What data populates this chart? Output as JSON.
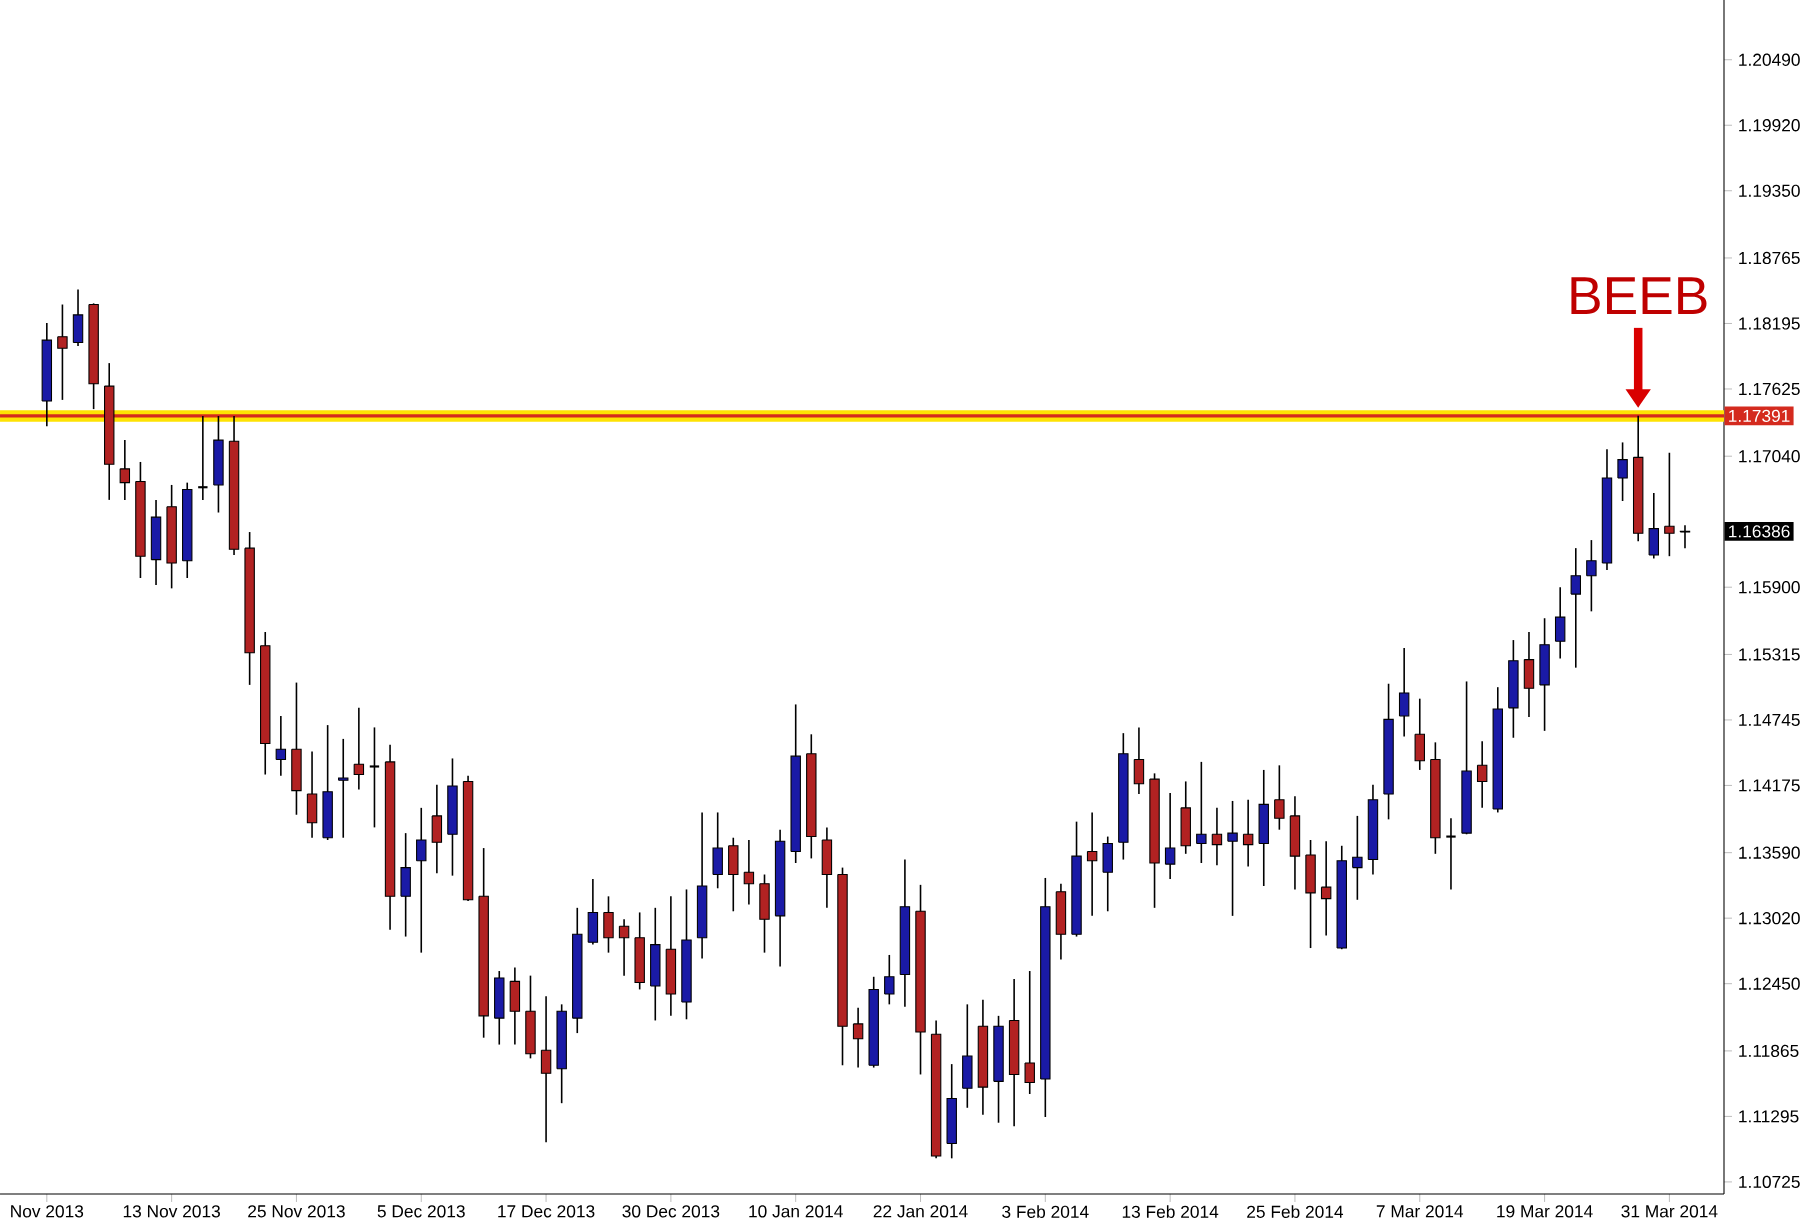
{
  "chart_data": {
    "type": "candlestick",
    "categories": [
      "Nov 2013",
      null,
      null,
      null,
      null,
      null,
      null,
      null,
      "13 Nov 2013",
      null,
      null,
      null,
      null,
      null,
      null,
      null,
      "25 Nov 2013",
      null,
      null,
      null,
      null,
      null,
      null,
      null,
      "5 Dec 2013",
      null,
      null,
      null,
      null,
      null,
      null,
      null,
      "17 Dec 2013",
      null,
      null,
      null,
      null,
      null,
      null,
      null,
      "30 Dec 2013",
      null,
      null,
      null,
      null,
      null,
      null,
      null,
      "10 Jan 2014",
      null,
      null,
      null,
      null,
      null,
      null,
      null,
      "22 Jan 2014",
      null,
      null,
      null,
      null,
      null,
      null,
      null,
      "3 Feb 2014",
      null,
      null,
      null,
      null,
      null,
      null,
      null,
      "13 Feb 2014",
      null,
      null,
      null,
      null,
      null,
      null,
      null,
      "25 Feb 2014",
      null,
      null,
      null,
      null,
      null,
      null,
      null,
      "7 Mar 2014",
      null,
      null,
      null,
      null,
      null,
      null,
      null,
      "19 Mar 2014",
      null,
      null,
      null,
      null,
      null,
      null,
      null,
      "31 Mar 2014",
      null
    ],
    "ohlc": [
      [
        1.1752,
        1.182,
        1.173,
        1.1805
      ],
      [
        1.1808,
        1.1836,
        1.1753,
        1.1798
      ],
      [
        1.1803,
        1.1849,
        1.18,
        1.1827
      ],
      [
        1.1836,
        1.1837,
        1.1745,
        1.1767
      ],
      [
        1.1765,
        1.1785,
        1.1666,
        1.1697
      ],
      [
        1.1693,
        1.1718,
        1.1666,
        1.1681
      ],
      [
        1.1682,
        1.1699,
        1.1598,
        1.1617
      ],
      [
        1.1614,
        1.1666,
        1.1592,
        1.1651
      ],
      [
        1.166,
        1.1679,
        1.1589,
        1.1611
      ],
      [
        1.1613,
        1.1681,
        1.1598,
        1.1675
      ],
      [
        1.1677,
        1.1739,
        1.1666,
        1.1677
      ],
      [
        1.1679,
        1.1739,
        1.1655,
        1.1718
      ],
      [
        1.1717,
        1.1739,
        1.1618,
        1.1623
      ],
      [
        1.1624,
        1.1638,
        1.1505,
        1.1533
      ],
      [
        1.1539,
        1.1551,
        1.1427,
        1.1454
      ],
      [
        1.144,
        1.1478,
        1.1426,
        1.1449
      ],
      [
        1.1449,
        1.1507,
        1.1392,
        1.1413
      ],
      [
        1.141,
        1.1447,
        1.1372,
        1.1385
      ],
      [
        1.1372,
        1.147,
        1.137,
        1.1412
      ],
      [
        1.1422,
        1.1458,
        1.1372,
        1.1424
      ],
      [
        1.1436,
        1.1485,
        1.1414,
        1.1427
      ],
      [
        1.1434,
        1.1468,
        1.1381,
        1.1434
      ],
      [
        1.1438,
        1.1453,
        1.1292,
        1.1321
      ],
      [
        1.1321,
        1.1376,
        1.1286,
        1.1346
      ],
      [
        1.1352,
        1.1398,
        1.1272,
        1.137
      ],
      [
        1.1391,
        1.1418,
        1.1341,
        1.1368
      ],
      [
        1.1375,
        1.1441,
        1.1339,
        1.1417
      ],
      [
        1.1421,
        1.1426,
        1.1317,
        1.1318
      ],
      [
        1.1321,
        1.1363,
        1.1198,
        1.1217
      ],
      [
        1.1215,
        1.1256,
        1.1192,
        1.125
      ],
      [
        1.1247,
        1.1259,
        1.1192,
        1.1221
      ],
      [
        1.1221,
        1.1252,
        1.118,
        1.1184
      ],
      [
        1.1187,
        1.1234,
        1.1107,
        1.1167
      ],
      [
        1.1171,
        1.1227,
        1.1141,
        1.1221
      ],
      [
        1.1215,
        1.1311,
        1.1202,
        1.1288
      ],
      [
        1.1281,
        1.1336,
        1.1279,
        1.1307
      ],
      [
        1.1307,
        1.1321,
        1.1272,
        1.1285
      ],
      [
        1.1295,
        1.1301,
        1.1252,
        1.1285
      ],
      [
        1.1285,
        1.1307,
        1.124,
        1.1246
      ],
      [
        1.1243,
        1.1311,
        1.1213,
        1.1279
      ],
      [
        1.1275,
        1.1321,
        1.1217,
        1.1236
      ],
      [
        1.1229,
        1.1327,
        1.1214,
        1.1283
      ],
      [
        1.1285,
        1.1394,
        1.1267,
        1.133
      ],
      [
        1.134,
        1.1394,
        1.1328,
        1.1363
      ],
      [
        1.1365,
        1.1372,
        1.1308,
        1.134
      ],
      [
        1.1342,
        1.137,
        1.1314,
        1.1332
      ],
      [
        1.1332,
        1.134,
        1.1272,
        1.1301
      ],
      [
        1.1304,
        1.1379,
        1.126,
        1.1369
      ],
      [
        1.136,
        1.1488,
        1.135,
        1.1443
      ],
      [
        1.1445,
        1.1462,
        1.1354,
        1.1373
      ],
      [
        1.137,
        1.1381,
        1.1311,
        1.134
      ],
      [
        1.134,
        1.1346,
        1.1174,
        1.1208
      ],
      [
        1.121,
        1.1224,
        1.1172,
        1.1197
      ],
      [
        1.1174,
        1.1251,
        1.1172,
        1.124
      ],
      [
        1.1236,
        1.127,
        1.1227,
        1.1251
      ],
      [
        1.1253,
        1.1353,
        1.1225,
        1.1312
      ],
      [
        1.1308,
        1.1331,
        1.1166,
        1.1203
      ],
      [
        1.1201,
        1.1213,
        1.1093,
        1.1095
      ],
      [
        1.1106,
        1.1175,
        1.1093,
        1.1145
      ],
      [
        1.1154,
        1.1227,
        1.1137,
        1.1182
      ],
      [
        1.1208,
        1.1231,
        1.1131,
        1.1155
      ],
      [
        1.116,
        1.1217,
        1.1124,
        1.1208
      ],
      [
        1.1213,
        1.1249,
        1.1121,
        1.1166
      ],
      [
        1.1176,
        1.1256,
        1.1149,
        1.1159
      ],
      [
        1.1162,
        1.1337,
        1.1129,
        1.1312
      ],
      [
        1.1325,
        1.1332,
        1.1266,
        1.1288
      ],
      [
        1.1288,
        1.1386,
        1.1286,
        1.1356
      ],
      [
        1.136,
        1.1394,
        1.1304,
        1.1352
      ],
      [
        1.1342,
        1.1373,
        1.1308,
        1.1367
      ],
      [
        1.1368,
        1.1463,
        1.1353,
        1.1445
      ],
      [
        1.144,
        1.1468,
        1.141,
        1.1419
      ],
      [
        1.1423,
        1.1428,
        1.1311,
        1.135
      ],
      [
        1.1349,
        1.1411,
        1.1336,
        1.1363
      ],
      [
        1.1398,
        1.1421,
        1.1358,
        1.1365
      ],
      [
        1.1367,
        1.1438,
        1.135,
        1.1375
      ],
      [
        1.1375,
        1.1398,
        1.1348,
        1.1366
      ],
      [
        1.1369,
        1.1404,
        1.1304,
        1.1376
      ],
      [
        1.1375,
        1.1405,
        1.1347,
        1.1366
      ],
      [
        1.1367,
        1.1431,
        1.133,
        1.1401
      ],
      [
        1.1405,
        1.1435,
        1.1379,
        1.1389
      ],
      [
        1.1391,
        1.1408,
        1.1327,
        1.1356
      ],
      [
        1.1357,
        1.137,
        1.1276,
        1.1324
      ],
      [
        1.1329,
        1.1369,
        1.1287,
        1.1319
      ],
      [
        1.1276,
        1.1365,
        1.1275,
        1.1352
      ],
      [
        1.1346,
        1.1391,
        1.1318,
        1.1355
      ],
      [
        1.1353,
        1.1418,
        1.134,
        1.1405
      ],
      [
        1.141,
        1.1506,
        1.1388,
        1.1475
      ],
      [
        1.1478,
        1.1537,
        1.146,
        1.1498
      ],
      [
        1.1462,
        1.1493,
        1.1431,
        1.1439
      ],
      [
        1.144,
        1.1455,
        1.1358,
        1.1372
      ],
      [
        1.1373,
        1.1389,
        1.1327,
        1.1373
      ],
      [
        1.1376,
        1.1508,
        1.1375,
        1.143
      ],
      [
        1.1435,
        1.1456,
        1.1398,
        1.1421
      ],
      [
        1.1397,
        1.1503,
        1.1394,
        1.1484
      ],
      [
        1.1485,
        1.1544,
        1.1459,
        1.1526
      ],
      [
        1.1527,
        1.1551,
        1.1477,
        1.1502
      ],
      [
        1.1505,
        1.1563,
        1.1465,
        1.154
      ],
      [
        1.1543,
        1.159,
        1.1528,
        1.1564
      ],
      [
        1.1584,
        1.1624,
        1.152,
        1.16
      ],
      [
        1.16,
        1.1631,
        1.1569,
        1.1613
      ],
      [
        1.1611,
        1.171,
        1.1605,
        1.1685
      ],
      [
        1.1685,
        1.1716,
        1.1665,
        1.1701
      ],
      [
        1.1703,
        1.17391,
        1.163,
        1.1637
      ],
      [
        1.1618,
        1.1672,
        1.1615,
        1.1641
      ],
      [
        1.1643,
        1.1707,
        1.1617,
        1.1637
      ],
      [
        1.1638,
        1.1644,
        1.1624,
        1.16386
      ]
    ],
    "colors": [
      "#1a1aa6",
      "#b22222",
      "#1a1aa6",
      "#b22222",
      "#b22222",
      "#b22222",
      "#b22222",
      "#1a1aa6",
      "#b22222",
      "#1a1aa6",
      "#000000",
      "#1a1aa6",
      "#b22222",
      "#b22222",
      "#b22222",
      "#1a1aa6",
      "#b22222",
      "#b22222",
      "#1a1aa6",
      "#1a1aa6",
      "#b22222",
      "#000000",
      "#b22222",
      "#1a1aa6",
      "#1a1aa6",
      "#b22222",
      "#1a1aa6",
      "#b22222",
      "#b22222",
      "#1a1aa6",
      "#b22222",
      "#b22222",
      "#b22222",
      "#1a1aa6",
      "#1a1aa6",
      "#1a1aa6",
      "#b22222",
      "#b22222",
      "#b22222",
      "#1a1aa6",
      "#b22222",
      "#1a1aa6",
      "#1a1aa6",
      "#1a1aa6",
      "#b22222",
      "#b22222",
      "#b22222",
      "#1a1aa6",
      "#1a1aa6",
      "#b22222",
      "#b22222",
      "#b22222",
      "#b22222",
      "#1a1aa6",
      "#1a1aa6",
      "#1a1aa6",
      "#b22222",
      "#b22222",
      "#1a1aa6",
      "#1a1aa6",
      "#b22222",
      "#1a1aa6",
      "#b22222",
      "#b22222",
      "#1a1aa6",
      "#b22222",
      "#1a1aa6",
      "#b22222",
      "#1a1aa6",
      "#1a1aa6",
      "#b22222",
      "#b22222",
      "#1a1aa6",
      "#b22222",
      "#1a1aa6",
      "#b22222",
      "#1a1aa6",
      "#b22222",
      "#1a1aa6",
      "#b22222",
      "#b22222",
      "#b22222",
      "#b22222",
      "#1a1aa6",
      "#1a1aa6",
      "#1a1aa6",
      "#1a1aa6",
      "#1a1aa6",
      "#b22222",
      "#b22222",
      "#000000",
      "#1a1aa6",
      "#b22222",
      "#1a1aa6",
      "#1a1aa6",
      "#b22222",
      "#1a1aa6",
      "#1a1aa6",
      "#1a1aa6",
      "#1a1aa6",
      "#1a1aa6",
      "#1a1aa6",
      "#b22222",
      "#1a1aa6",
      "#b22222",
      "#000000"
    ],
    "ylim": [
      1.1062,
      1.2101
    ],
    "yticks": [
      {
        "value": 1.2049,
        "label": "1.20490"
      },
      {
        "value": 1.1992,
        "label": "1.19920"
      },
      {
        "value": 1.1935,
        "label": "1.19350"
      },
      {
        "value": 1.18765,
        "label": "1.18765"
      },
      {
        "value": 1.18195,
        "label": "1.18195"
      },
      {
        "value": 1.17625,
        "label": "1.17625"
      },
      {
        "value": 1.1704,
        "label": "1.17040"
      },
      {
        "value": 1.159,
        "label": "1.15900"
      },
      {
        "value": 1.15315,
        "label": "1.15315"
      },
      {
        "value": 1.14745,
        "label": "1.14745"
      },
      {
        "value": 1.14175,
        "label": "1.14175"
      },
      {
        "value": 1.1359,
        "label": "1.13590"
      },
      {
        "value": 1.1302,
        "label": "1.13020"
      },
      {
        "value": 1.1245,
        "label": "1.12450"
      },
      {
        "value": 1.11865,
        "label": "1.11865"
      },
      {
        "value": 1.11295,
        "label": "1.11295"
      },
      {
        "value": 1.10725,
        "label": "1.10725"
      }
    ],
    "ref_lines": [
      {
        "axis": "y",
        "value": 1.17391,
        "label": "1.17391",
        "color": "#d42a1e"
      }
    ],
    "bands": [
      {
        "axis": "y",
        "from": 1.1734,
        "to": 1.1744,
        "color": "#fee203"
      }
    ],
    "annotations": [
      {
        "text": "BEEB",
        "y": 1.17391
      },
      "1.16386"
    ]
  }
}
